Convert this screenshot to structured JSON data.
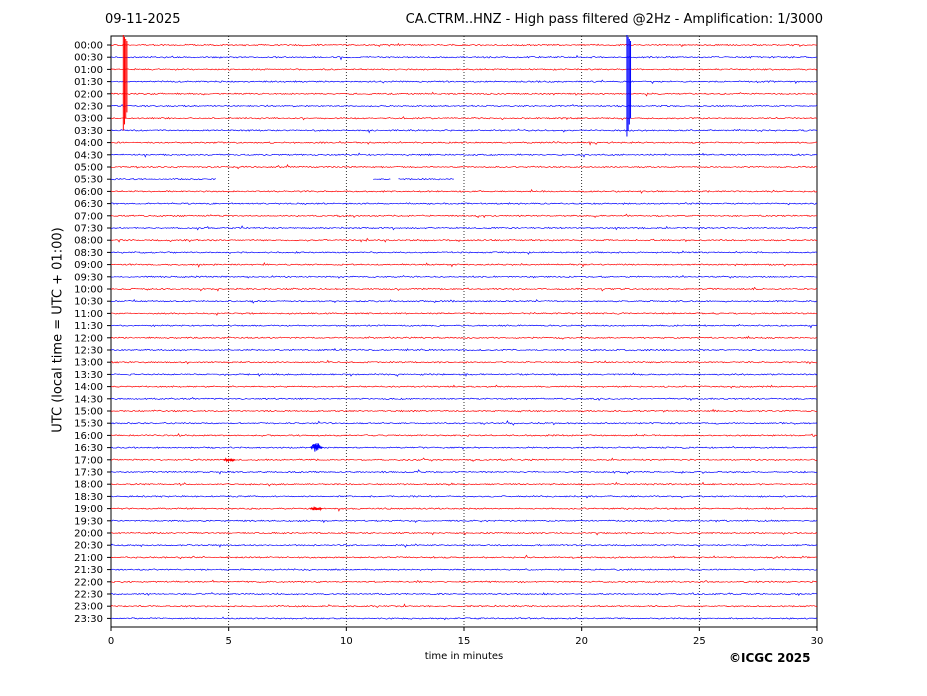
{
  "header": {
    "date": "09-11-2025",
    "title": "CA.CTRM..HNZ - High pass filtered @2Hz - Amplification: 1/3000"
  },
  "footer": {
    "copyright": "©ICGC 2025"
  },
  "chart_data": {
    "type": "line",
    "xlabel": "time in minutes",
    "ylabel": "UTC (local time = UTC + 01:00)",
    "xlim": [
      0,
      30
    ],
    "xticks": [
      0,
      5,
      10,
      15,
      20,
      25,
      30
    ],
    "grid": "vertical dotted at 5-minute intervals",
    "row_labels": [
      "00:00",
      "00:30",
      "01:00",
      "01:30",
      "02:00",
      "02:30",
      "03:00",
      "03:30",
      "04:00",
      "04:30",
      "05:00",
      "05:30",
      "06:00",
      "06:30",
      "07:00",
      "07:30",
      "08:00",
      "08:30",
      "09:00",
      "09:30",
      "10:00",
      "10:30",
      "11:00",
      "11:30",
      "12:00",
      "12:30",
      "13:00",
      "13:30",
      "14:00",
      "14:30",
      "15:00",
      "15:30",
      "16:00",
      "16:30",
      "17:00",
      "17:30",
      "18:00",
      "18:30",
      "19:00",
      "19:30",
      "20:00",
      "20:30",
      "21:00",
      "21:30",
      "22:00",
      "22:30",
      "23:00",
      "23:30"
    ],
    "trace_colors": [
      "#ff0000",
      "#0000ff"
    ],
    "events": [
      {
        "row": "00:00",
        "minute": 0.6,
        "extent_rows": 7,
        "color": "#ff0000"
      },
      {
        "row": "00:00",
        "minute": 22.0,
        "extent_rows": 7.5,
        "color": "#0000ff"
      },
      {
        "row": "16:30",
        "minute": 8.6,
        "extent_rows": 0.4,
        "color": "#0000ff"
      },
      {
        "row": "17:00",
        "minute": 4.9,
        "extent_rows": 0.15,
        "color": "#ff0000"
      },
      {
        "row": "19:00",
        "minute": 8.6,
        "extent_rows": 0.15,
        "color": "#ff0000"
      }
    ],
    "gaps": [
      {
        "row": "05:30",
        "from_minute": 4.5,
        "to_minute": 11.1
      },
      {
        "row": "05:30",
        "from_minute": 11.9,
        "to_minute": 12.2
      },
      {
        "row": "05:30",
        "from_minute": 14.6,
        "to_minute": 30
      }
    ]
  }
}
